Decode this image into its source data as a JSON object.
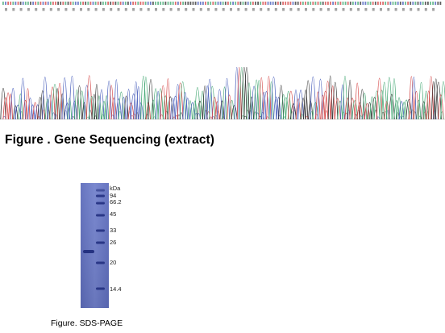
{
  "sequencing": {
    "caption": "Figure . Gene Sequencing (extract)",
    "colors": {
      "A": "#3aa36b",
      "C": "#3f56b8",
      "G": "#2b2b2b",
      "T": "#d23c3c"
    },
    "letter_colors": [
      "#d23c3c",
      "#3aa36b",
      "#3f56b8",
      "#2b2b2b"
    ]
  },
  "sds_page": {
    "caption": "Figure. SDS-PAGE",
    "unit_label": "kDa",
    "markers": [
      "94",
      "66.2",
      "45",
      "33",
      "26",
      "20",
      "14.4"
    ],
    "gel_color": "#6a78c4"
  }
}
